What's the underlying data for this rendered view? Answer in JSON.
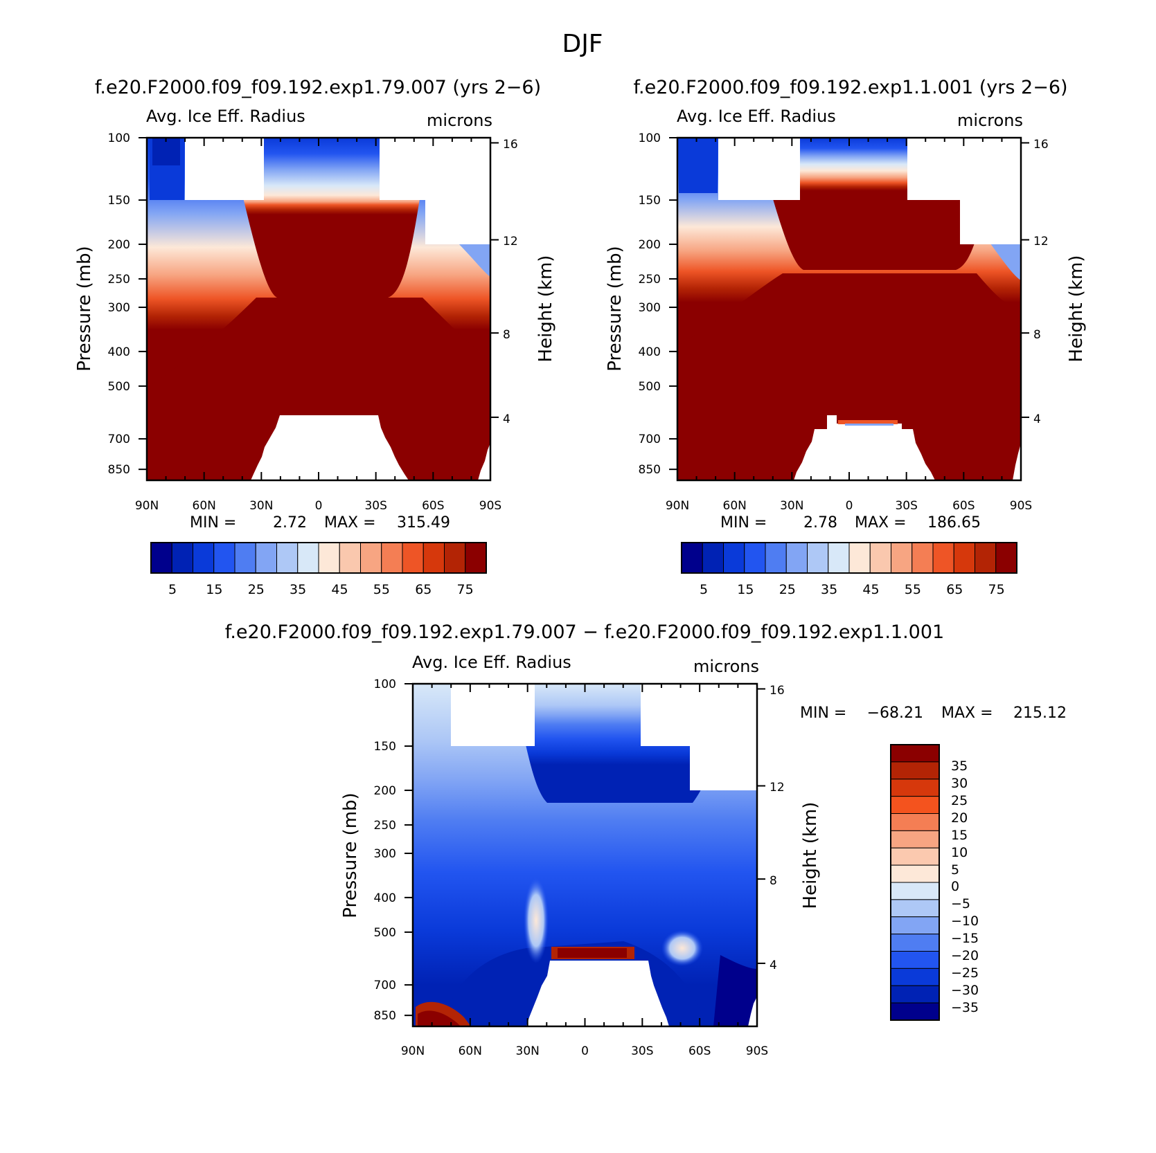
{
  "figure": {
    "season": "DJF",
    "diff_title": "f.e20.F2000.f09_f09.192.exp1.79.007 − f.e20.F2000.f09_f09.192.exp1.1.001"
  },
  "chart_data": [
    {
      "type": "heatmap",
      "title": "f.e20.F2000.f09_f09.192.exp1.79.007 (yrs 2−6)",
      "subtitle_left": "Avg. Ice Eff. Radius",
      "subtitle_right": "microns",
      "xlabel": "",
      "ylabel": "Pressure (mb)",
      "ylabel_right": "Height (km)",
      "x_ticks": [
        "90N",
        "60N",
        "30N",
        "0",
        "30S",
        "60S",
        "90S"
      ],
      "y_ticks": [
        "100",
        "150",
        "200",
        "250",
        "300",
        "400",
        "500",
        "700",
        "850"
      ],
      "y_right_ticks": [
        "16",
        "12",
        "8",
        "4"
      ],
      "min_label": "MIN =",
      "min_value": "2.72",
      "max_label": "MAX =",
      "max_value": "315.49",
      "colorbar_labels": [
        "5",
        "15",
        "25",
        "35",
        "45",
        "55",
        "65",
        "75"
      ],
      "colorbar_colors": [
        "#00008c",
        "#0022b4",
        "#0a3ad9",
        "#2255f0",
        "#4f7df2",
        "#82a5f4",
        "#aec8f6",
        "#d8e8f8",
        "#fde8d8",
        "#fac8ae",
        "#f7a582",
        "#f47e54",
        "#ee5526",
        "#d6380c",
        "#b32405",
        "#8b0000"
      ],
      "field": {
        "lat": [
          "90N",
          "60N",
          "30N",
          "0",
          "30S",
          "60S",
          "90S"
        ],
        "pressure": [
          100,
          150,
          200,
          250,
          300,
          400,
          500,
          700,
          850
        ],
        "values": [
          [
            6,
            null,
            20,
            18,
            15,
            null,
            null
          ],
          [
            14,
            26,
            34,
            36,
            34,
            32,
            null
          ],
          [
            20,
            38,
            50,
            52,
            48,
            40,
            22
          ],
          [
            30,
            48,
            62,
            66,
            64,
            50,
            34
          ],
          [
            42,
            58,
            80,
            80,
            80,
            70,
            48
          ],
          [
            64,
            80,
            80,
            80,
            80,
            80,
            70
          ],
          [
            80,
            80,
            80,
            80,
            80,
            80,
            80
          ],
          [
            80,
            80,
            null,
            null,
            null,
            80,
            80
          ],
          [
            80,
            80,
            null,
            null,
            null,
            80,
            80
          ]
        ]
      }
    },
    {
      "type": "heatmap",
      "title": "f.e20.F2000.f09_f09.192.exp1.1.001 (yrs 2−6)",
      "subtitle_left": "Avg. Ice Eff. Radius",
      "subtitle_right": "microns",
      "xlabel": "",
      "ylabel": "Pressure (mb)",
      "ylabel_right": "Height (km)",
      "x_ticks": [
        "90N",
        "60N",
        "30N",
        "0",
        "30S",
        "60S",
        "90S"
      ],
      "y_ticks": [
        "100",
        "150",
        "200",
        "250",
        "300",
        "400",
        "500",
        "700",
        "850"
      ],
      "y_right_ticks": [
        "16",
        "12",
        "8",
        "4"
      ],
      "min_label": "MIN =",
      "min_value": "2.78",
      "max_label": "MAX =",
      "max_value": "186.65",
      "colorbar_labels": [
        "5",
        "15",
        "25",
        "35",
        "45",
        "55",
        "65",
        "75"
      ],
      "colorbar_colors": [
        "#00008c",
        "#0022b4",
        "#0a3ad9",
        "#2255f0",
        "#4f7df2",
        "#82a5f4",
        "#aec8f6",
        "#d8e8f8",
        "#fde8d8",
        "#fac8ae",
        "#f7a582",
        "#f47e54",
        "#ee5526",
        "#d6380c",
        "#b32405",
        "#8b0000"
      ],
      "field": {
        "lat": [
          "90N",
          "60N",
          "30N",
          "0",
          "30S",
          "60S",
          "90S"
        ],
        "pressure": [
          100,
          150,
          200,
          250,
          300,
          400,
          500,
          700,
          850
        ],
        "values": [
          [
            12,
            null,
            22,
            20,
            18,
            null,
            null
          ],
          [
            18,
            34,
            44,
            46,
            44,
            42,
            null
          ],
          [
            28,
            50,
            62,
            64,
            64,
            60,
            30
          ],
          [
            40,
            64,
            80,
            80,
            80,
            72,
            46
          ],
          [
            56,
            78,
            80,
            80,
            80,
            80,
            66
          ],
          [
            80,
            80,
            80,
            80,
            80,
            80,
            80
          ],
          [
            80,
            80,
            80,
            80,
            80,
            80,
            80
          ],
          [
            80,
            80,
            null,
            null,
            null,
            80,
            80
          ],
          [
            80,
            80,
            null,
            null,
            null,
            80,
            80
          ]
        ]
      }
    },
    {
      "type": "heatmap",
      "title": "",
      "subtitle_left": "Avg. Ice Eff. Radius",
      "subtitle_right": "microns",
      "xlabel": "",
      "ylabel": "Pressure (mb)",
      "ylabel_right": "Height (km)",
      "x_ticks": [
        "90N",
        "60N",
        "30N",
        "0",
        "30S",
        "60S",
        "90S"
      ],
      "y_ticks": [
        "100",
        "150",
        "200",
        "250",
        "300",
        "400",
        "500",
        "700",
        "850"
      ],
      "y_right_ticks": [
        "16",
        "12",
        "8",
        "4"
      ],
      "min_label": "MIN =",
      "min_value": "−68.21",
      "max_label": "MAX =",
      "max_value": "215.12",
      "colorbar_labels": [
        "35",
        "30",
        "25",
        "20",
        "15",
        "10",
        "5",
        "0",
        "−5",
        "−10",
        "−15",
        "−20",
        "−25",
        "−30",
        "−35"
      ],
      "colorbar_colors": [
        "#8b0000",
        "#b32405",
        "#d6380c",
        "#f4531e",
        "#f47e54",
        "#f7a582",
        "#fbc9af",
        "#fde8d8",
        "#d8e8f8",
        "#aec8f6",
        "#82a5f4",
        "#4f7df2",
        "#2255f0",
        "#0a3ad9",
        "#0022b4",
        "#00008c"
      ],
      "field": {
        "lat": [
          "90N",
          "60N",
          "30N",
          "0",
          "30S",
          "60S",
          "90S"
        ],
        "pressure": [
          100,
          150,
          200,
          250,
          300,
          400,
          500,
          700,
          850
        ],
        "values": [
          [
            -3,
            null,
            -2,
            -2,
            -2,
            null,
            null
          ],
          [
            -6,
            -8,
            -6,
            -6,
            -7,
            -8,
            null
          ],
          [
            -10,
            -12,
            -14,
            -16,
            -16,
            -14,
            -10
          ],
          [
            -14,
            -16,
            -20,
            -22,
            -22,
            -20,
            -15
          ],
          [
            -18,
            -20,
            -24,
            -26,
            -26,
            -24,
            -20
          ],
          [
            -22,
            -26,
            -28,
            -30,
            -28,
            -26,
            -24
          ],
          [
            -24,
            -28,
            -10,
            -32,
            -26,
            -8,
            -28
          ],
          [
            -26,
            -32,
            null,
            null,
            null,
            -30,
            -36
          ],
          [
            30,
            -30,
            null,
            null,
            null,
            -36,
            -38
          ]
        ]
      }
    }
  ]
}
